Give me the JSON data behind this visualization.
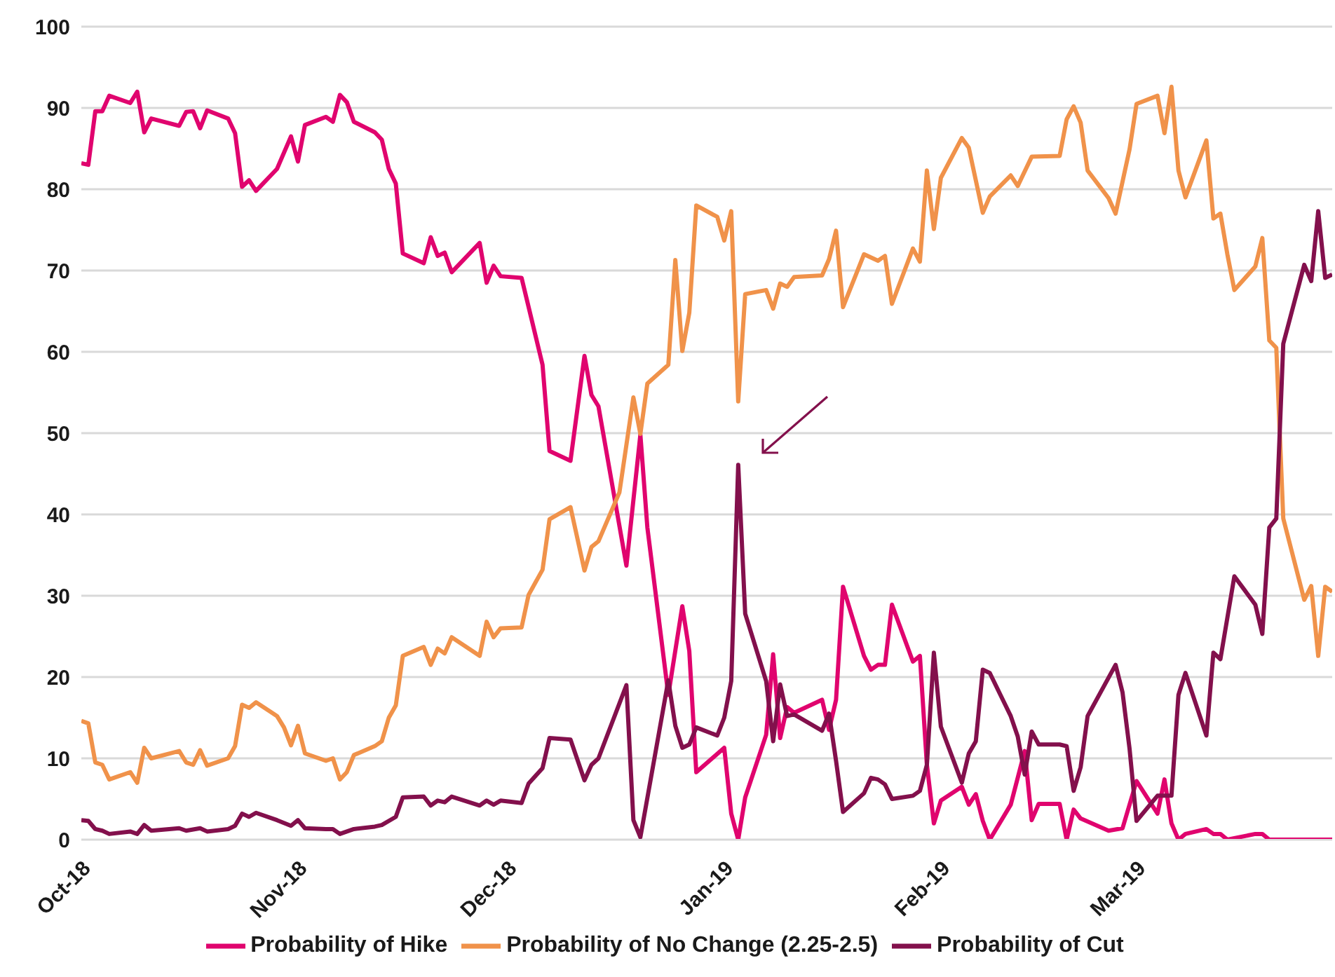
{
  "chart_data": {
    "type": "line",
    "xlim": [
      "2018-10-01",
      "2019-03-29"
    ],
    "xticks": [
      {
        "value": "2018-10-01",
        "label": "Oct-18"
      },
      {
        "value": "2018-11-01",
        "label": "Nov-18"
      },
      {
        "value": "2018-12-01",
        "label": "Dec-18"
      },
      {
        "value": "2019-01-01",
        "label": "Jan-19"
      },
      {
        "value": "2019-02-01",
        "label": "Feb-19"
      },
      {
        "value": "2019-03-01",
        "label": "Mar-19"
      }
    ],
    "ylim": [
      0,
      100
    ],
    "yticks": [
      0,
      10,
      20,
      30,
      40,
      50,
      60,
      70,
      80,
      90,
      100
    ],
    "grid": "y",
    "legend": "bottom",
    "marker": "none",
    "line_style": "solid",
    "series": [
      {
        "name": "Probability of Hike",
        "color": "#e0046e",
        "x": [
          "2018-10-01",
          "2018-10-02",
          "2018-10-03",
          "2018-10-04",
          "2018-10-05",
          "2018-10-08",
          "2018-10-09",
          "2018-10-10",
          "2018-10-11",
          "2018-10-15",
          "2018-10-16",
          "2018-10-17",
          "2018-10-18",
          "2018-10-19",
          "2018-10-22",
          "2018-10-23",
          "2018-10-24",
          "2018-10-25",
          "2018-10-26",
          "2018-10-29",
          "2018-10-31",
          "2018-11-01",
          "2018-11-02",
          "2018-11-05",
          "2018-11-06",
          "2018-11-07",
          "2018-11-08",
          "2018-11-09",
          "2018-11-12",
          "2018-11-13",
          "2018-11-14",
          "2018-11-15",
          "2018-11-16",
          "2018-11-19",
          "2018-11-20",
          "2018-11-21",
          "2018-11-22",
          "2018-11-23",
          "2018-11-27",
          "2018-11-28",
          "2018-11-29",
          "2018-11-30",
          "2018-12-03",
          "2018-12-06",
          "2018-12-07",
          "2018-12-10",
          "2018-12-12",
          "2018-12-13",
          "2018-12-14",
          "2018-12-18",
          "2018-12-20",
          "2018-12-21",
          "2018-12-24",
          "2018-12-26",
          "2018-12-27",
          "2018-12-28",
          "2019-01-01",
          "2019-01-02",
          "2019-01-03",
          "2019-01-04",
          "2019-01-07",
          "2019-01-08",
          "2019-01-09",
          "2019-01-10",
          "2019-01-11",
          "2019-01-15",
          "2019-01-16",
          "2019-01-17",
          "2019-01-18",
          "2019-01-21",
          "2019-01-22",
          "2019-01-23",
          "2019-01-24",
          "2019-01-25",
          "2019-01-28",
          "2019-01-29",
          "2019-01-30",
          "2019-01-31",
          "2019-02-01",
          "2019-02-04",
          "2019-02-05",
          "2019-02-06",
          "2019-02-07",
          "2019-02-08",
          "2019-02-11",
          "2019-02-13",
          "2019-02-14",
          "2019-02-15",
          "2019-02-18",
          "2019-02-19",
          "2019-02-20",
          "2019-02-21",
          "2019-02-25",
          "2019-02-27",
          "2019-03-01",
          "2019-03-04",
          "2019-03-05",
          "2019-03-06",
          "2019-03-07",
          "2019-03-08",
          "2019-03-11",
          "2019-03-12",
          "2019-03-13",
          "2019-03-14",
          "2019-03-18",
          "2019-03-19",
          "2019-03-20",
          "2019-03-29"
        ],
        "values": [
          83.2,
          83,
          89.6,
          89.6,
          91.5,
          90.6,
          92,
          87,
          88.7,
          87.8,
          89.5,
          89.6,
          87.5,
          89.7,
          88.7,
          86.9,
          80.3,
          81.1,
          79.8,
          82.5,
          86.5,
          83.4,
          87.9,
          88.9,
          88.3,
          91.6,
          90.7,
          88.3,
          87,
          86.1,
          82.5,
          80.7,
          72.1,
          70.9,
          74.1,
          71.8,
          72.2,
          69.8,
          73.4,
          68.5,
          70.6,
          69.3,
          69.1,
          58.4,
          47.8,
          46.6,
          59.5,
          54.7,
          53.3,
          33.7,
          49.8,
          38.4,
          17.8,
          28.7,
          23.2,
          8.3,
          11.3,
          3.2,
          0,
          5.2,
          12.9,
          22.8,
          12.5,
          16.3,
          15.6,
          17.2,
          13.5,
          17.2,
          31.1,
          22.6,
          20.9,
          21.5,
          21.5,
          28.9,
          21.9,
          22.6,
          9.2,
          2,
          4.8,
          6.5,
          4.3,
          5.6,
          2.3,
          0,
          4.3,
          10.9,
          2.4,
          4.4,
          4.4,
          0,
          3.7,
          2.6,
          1.1,
          1.4,
          7.2,
          3.2,
          7.4,
          2,
          0,
          0.7,
          1.3,
          0.7,
          0.7,
          0,
          0.7,
          0.7,
          0,
          0
        ]
      },
      {
        "name": "Probability of No Change (2.25-2.5)",
        "color": "#f0924a",
        "x": [
          "2018-10-01",
          "2018-10-02",
          "2018-10-03",
          "2018-10-04",
          "2018-10-05",
          "2018-10-08",
          "2018-10-09",
          "2018-10-10",
          "2018-10-11",
          "2018-10-15",
          "2018-10-16",
          "2018-10-17",
          "2018-10-18",
          "2018-10-19",
          "2018-10-22",
          "2018-10-23",
          "2018-10-24",
          "2018-10-25",
          "2018-10-26",
          "2018-10-29",
          "2018-10-30",
          "2018-10-31",
          "2018-11-01",
          "2018-11-02",
          "2018-11-05",
          "2018-11-06",
          "2018-11-07",
          "2018-11-08",
          "2018-11-09",
          "2018-11-12",
          "2018-11-13",
          "2018-11-14",
          "2018-11-15",
          "2018-11-16",
          "2018-11-19",
          "2018-11-20",
          "2018-11-21",
          "2018-11-22",
          "2018-11-23",
          "2018-11-27",
          "2018-11-28",
          "2018-11-29",
          "2018-11-30",
          "2018-12-03",
          "2018-12-04",
          "2018-12-06",
          "2018-12-07",
          "2018-12-10",
          "2018-12-12",
          "2018-12-13",
          "2018-12-14",
          "2018-12-17",
          "2018-12-19",
          "2018-12-20",
          "2018-12-21",
          "2018-12-24",
          "2018-12-25",
          "2018-12-26",
          "2018-12-27",
          "2018-12-28",
          "2018-12-31",
          "2019-01-01",
          "2019-01-02",
          "2019-01-03",
          "2019-01-04",
          "2019-01-07",
          "2019-01-08",
          "2019-01-09",
          "2019-01-10",
          "2019-01-11",
          "2019-01-15",
          "2019-01-16",
          "2019-01-17",
          "2019-01-18",
          "2019-01-21",
          "2019-01-23",
          "2019-01-24",
          "2019-01-25",
          "2019-01-28",
          "2019-01-29",
          "2019-01-30",
          "2019-01-31",
          "2019-02-01",
          "2019-02-04",
          "2019-02-05",
          "2019-02-07",
          "2019-02-08",
          "2019-02-11",
          "2019-02-12",
          "2019-02-14",
          "2019-02-18",
          "2019-02-19",
          "2019-02-20",
          "2019-02-21",
          "2019-02-22",
          "2019-02-25",
          "2019-02-26",
          "2019-02-28",
          "2019-03-01",
          "2019-03-04",
          "2019-03-05",
          "2019-03-06",
          "2019-03-07",
          "2019-03-08",
          "2019-03-11",
          "2019-03-12",
          "2019-03-13",
          "2019-03-14",
          "2019-03-15",
          "2019-03-18",
          "2019-03-19",
          "2019-03-20",
          "2019-03-21",
          "2019-03-22",
          "2019-03-25",
          "2019-03-26",
          "2019-03-27",
          "2019-03-28",
          "2019-03-29"
        ],
        "values": [
          14.6,
          14.3,
          9.5,
          9.2,
          7.4,
          8.3,
          7,
          11.3,
          10,
          10.9,
          9.5,
          9.2,
          11,
          9.1,
          10,
          11.5,
          16.6,
          16.2,
          16.9,
          15.2,
          13.8,
          11.6,
          14,
          10.6,
          9.7,
          10,
          7.4,
          8.3,
          10.4,
          11.5,
          12.1,
          15,
          16.5,
          22.6,
          23.7,
          21.5,
          23.5,
          22.9,
          24.9,
          22.6,
          26.8,
          24.9,
          26,
          26.1,
          30.1,
          33.2,
          39.4,
          40.9,
          33.1,
          36,
          36.7,
          42.7,
          54.4,
          49.9,
          56.1,
          58.4,
          71.3,
          60.1,
          64.8,
          78,
          76.6,
          73.7,
          77.3,
          53.9,
          67.1,
          67.6,
          65.3,
          68.4,
          68,
          69.2,
          69.4,
          71.4,
          74.9,
          65.5,
          72,
          71.2,
          71.8,
          65.9,
          72.7,
          71.1,
          82.3,
          75.1,
          81.4,
          86.3,
          85.1,
          77.1,
          79.1,
          81.7,
          80.4,
          84,
          84.1,
          88.6,
          90.2,
          88.2,
          82.3,
          78.9,
          77,
          84.9,
          90.5,
          91.5,
          86.9,
          92.6,
          82.3,
          79,
          86,
          76.4,
          77,
          72,
          67.6,
          70.5,
          74,
          61.4,
          60.5,
          39.5,
          29.5,
          31.2,
          22.6,
          31.1,
          30.5
        ]
      },
      {
        "name": "Probability of Cut",
        "color": "#83104c",
        "x": [
          "2018-10-01",
          "2018-10-02",
          "2018-10-03",
          "2018-10-04",
          "2018-10-05",
          "2018-10-08",
          "2018-10-09",
          "2018-10-10",
          "2018-10-11",
          "2018-10-15",
          "2018-10-16",
          "2018-10-18",
          "2018-10-19",
          "2018-10-22",
          "2018-10-23",
          "2018-10-24",
          "2018-10-25",
          "2018-10-26",
          "2018-10-29",
          "2018-10-31",
          "2018-11-01",
          "2018-11-02",
          "2018-11-05",
          "2018-11-06",
          "2018-11-07",
          "2018-11-09",
          "2018-11-12",
          "2018-11-13",
          "2018-11-15",
          "2018-11-16",
          "2018-11-19",
          "2018-11-20",
          "2018-11-21",
          "2018-11-22",
          "2018-11-23",
          "2018-11-27",
          "2018-11-28",
          "2018-11-29",
          "2018-11-30",
          "2018-12-03",
          "2018-12-04",
          "2018-12-06",
          "2018-12-07",
          "2018-12-10",
          "2018-12-12",
          "2018-12-13",
          "2018-12-14",
          "2018-12-18",
          "2018-12-19",
          "2018-12-20",
          "2018-12-24",
          "2018-12-25",
          "2018-12-26",
          "2018-12-27",
          "2018-12-28",
          "2018-12-31",
          "2019-01-01",
          "2019-01-02",
          "2019-01-03",
          "2019-01-04",
          "2019-01-07",
          "2019-01-08",
          "2019-01-09",
          "2019-01-10",
          "2019-01-11",
          "2019-01-15",
          "2019-01-16",
          "2019-01-17",
          "2019-01-18",
          "2019-01-21",
          "2019-01-22",
          "2019-01-23",
          "2019-01-24",
          "2019-01-25",
          "2019-01-28",
          "2019-01-29",
          "2019-01-30",
          "2019-01-31",
          "2019-02-01",
          "2019-02-04",
          "2019-02-05",
          "2019-02-06",
          "2019-02-07",
          "2019-02-08",
          "2019-02-11",
          "2019-02-12",
          "2019-02-13",
          "2019-02-14",
          "2019-02-15",
          "2019-02-18",
          "2019-02-19",
          "2019-02-20",
          "2019-02-21",
          "2019-02-22",
          "2019-02-26",
          "2019-02-27",
          "2019-02-28",
          "2019-03-01",
          "2019-03-04",
          "2019-03-05",
          "2019-03-06",
          "2019-03-07",
          "2019-03-08",
          "2019-03-11",
          "2019-03-12",
          "2019-03-13",
          "2019-03-15",
          "2019-03-18",
          "2019-03-19",
          "2019-03-20",
          "2019-03-21",
          "2019-03-22",
          "2019-03-25",
          "2019-03-26",
          "2019-03-27",
          "2019-03-28",
          "2019-03-29"
        ],
        "values": [
          2.4,
          2.3,
          1.3,
          1.1,
          0.7,
          1,
          0.7,
          1.8,
          1.1,
          1.4,
          1.1,
          1.4,
          1,
          1.3,
          1.7,
          3.2,
          2.8,
          3.3,
          2.4,
          1.7,
          2.4,
          1.4,
          1.3,
          1.3,
          0.7,
          1.3,
          1.6,
          1.8,
          2.8,
          5.2,
          5.3,
          4.2,
          4.8,
          4.6,
          5.3,
          4.2,
          4.8,
          4.3,
          4.8,
          4.5,
          6.9,
          8.8,
          12.5,
          12.3,
          7.3,
          9.2,
          10,
          19,
          2.4,
          0.3,
          19.6,
          14,
          11.3,
          11.7,
          13.8,
          12.8,
          15,
          19.5,
          46.1,
          27.8,
          19.5,
          12.1,
          19.1,
          15.2,
          15.4,
          13.4,
          15.5,
          9.7,
          3.4,
          5.7,
          7.6,
          7.4,
          6.8,
          5,
          5.4,
          6,
          9.2,
          23,
          13.9,
          7,
          10.6,
          12.1,
          20.9,
          20.5,
          15.2,
          12.7,
          8,
          13.3,
          11.7,
          11.7,
          11.5,
          6,
          8.9,
          15.2,
          21.5,
          18.1,
          11.2,
          2.3,
          5.4,
          5.4,
          5.4,
          17.8,
          20.5,
          12.8,
          23,
          22.2,
          32.4,
          28.9,
          25.3,
          38.4,
          39.5,
          61,
          70.7,
          68.7,
          77.3,
          69.1,
          69.5
        ]
      }
    ]
  }
}
